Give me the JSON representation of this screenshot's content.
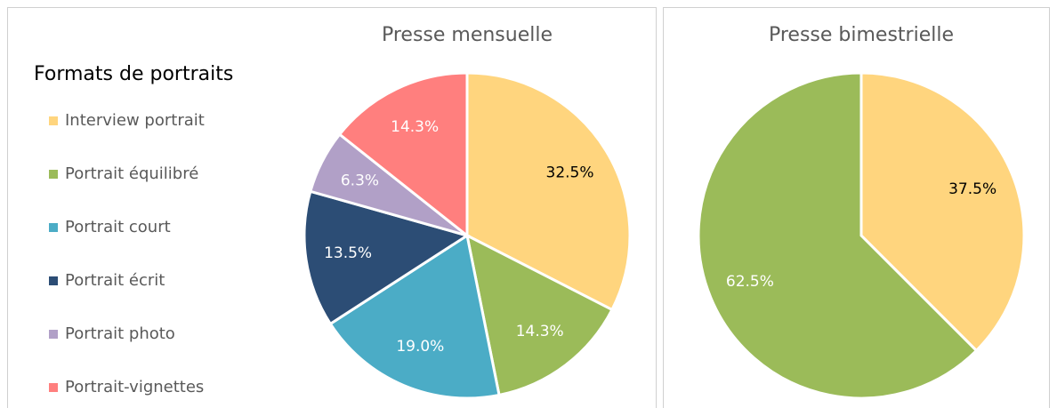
{
  "chart_data": [
    {
      "type": "pie",
      "title": "Presse mensuelle",
      "legend_title": "Formats de portraits",
      "categories": [
        "Interview portrait",
        "Portrait équilibré",
        "Portrait court",
        "Portrait écrit",
        "Portrait photo",
        "Portrait-vignettes"
      ],
      "values": [
        32.5,
        14.3,
        19.0,
        13.5,
        6.3,
        14.3
      ],
      "value_labels": [
        "32.5%",
        "14.3%",
        "19.0%",
        "13.5%",
        "6.3%",
        "14.3%"
      ],
      "colors": [
        "#ffd57e",
        "#9bbb59",
        "#4bacc6",
        "#2c4d75",
        "#b1a0c7",
        "#ff7f7e"
      ],
      "label_colors": [
        "#000000",
        "#ffffff",
        "#ffffff",
        "#ffffff",
        "#ffffff",
        "#ffffff"
      ]
    },
    {
      "type": "pie",
      "title": "Presse bimestrielle",
      "values": [
        37.5,
        62.5
      ],
      "value_labels": [
        "37.5%",
        "62.5%"
      ],
      "colors": [
        "#ffd57e",
        "#9bbb59"
      ],
      "label_colors": [
        "#000000",
        "#ffffff"
      ]
    }
  ]
}
